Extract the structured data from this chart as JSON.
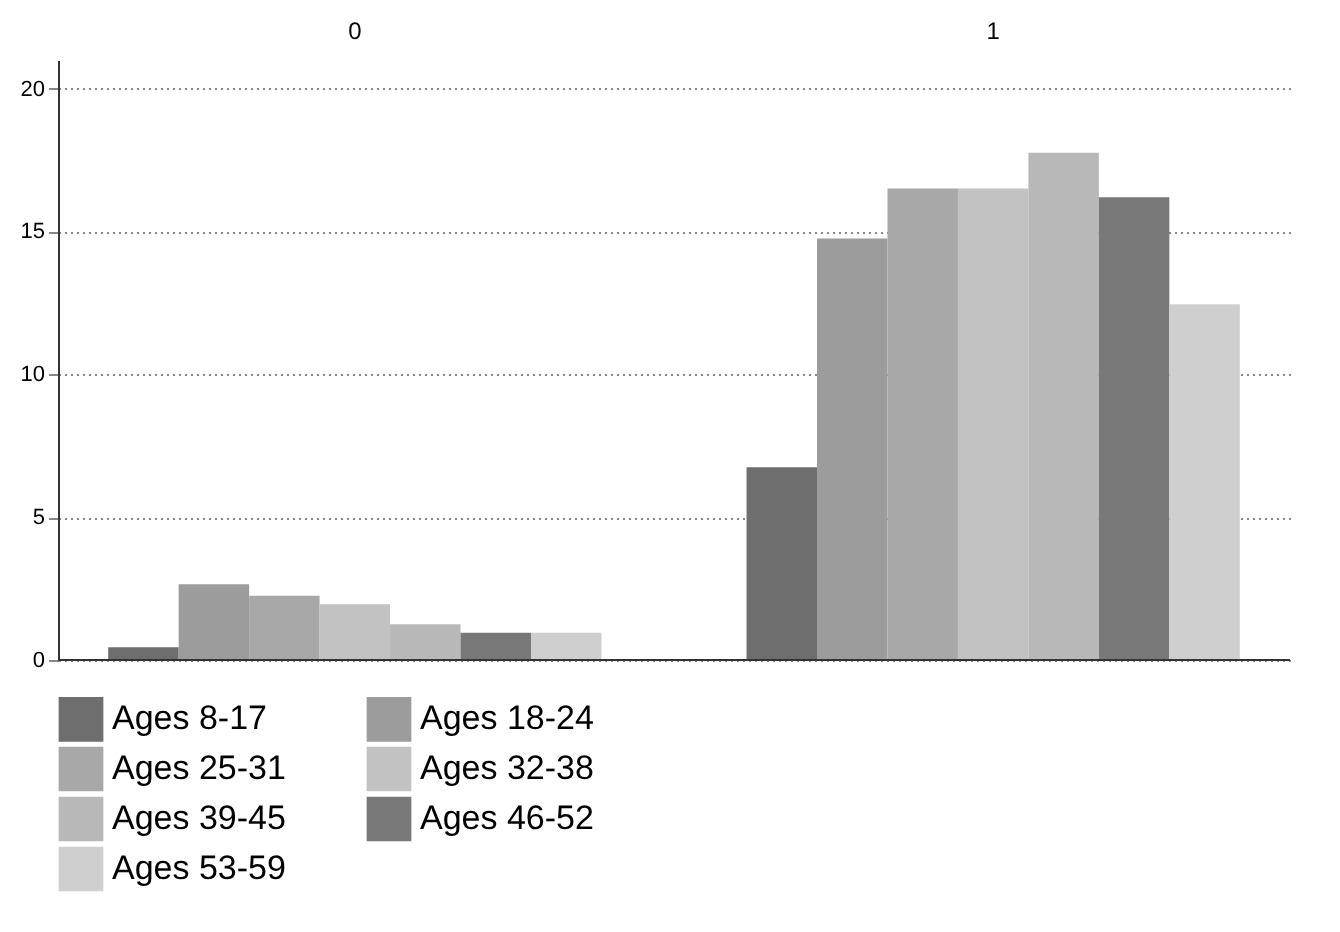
{
  "chart_data": {
    "type": "bar",
    "categories": [
      "0",
      "1"
    ],
    "ylim": [
      0,
      21
    ],
    "yticks": [
      0,
      5,
      10,
      15,
      20
    ],
    "grid": "y",
    "legend": "bottom",
    "series": [
      {
        "name": "Ages 8-17",
        "color": "#6e6e6e",
        "values": [
          0.45,
          6.75
        ]
      },
      {
        "name": "Ages 18-24",
        "color": "#9c9c9c",
        "values": [
          2.65,
          14.75
        ]
      },
      {
        "name": "Ages 25-31",
        "color": "#a8a8a8",
        "values": [
          2.25,
          16.5
        ]
      },
      {
        "name": "Ages 32-38",
        "color": "#c2c2c2",
        "values": [
          1.95,
          16.5
        ]
      },
      {
        "name": "Ages 39-45",
        "color": "#b8b8b8",
        "values": [
          1.25,
          17.75
        ]
      },
      {
        "name": "Ages 46-52",
        "color": "#787878",
        "values": [
          0.95,
          16.2
        ]
      },
      {
        "name": "Ages 53-59",
        "color": "#cfcfcf",
        "values": [
          0.95,
          12.45
        ]
      }
    ]
  }
}
